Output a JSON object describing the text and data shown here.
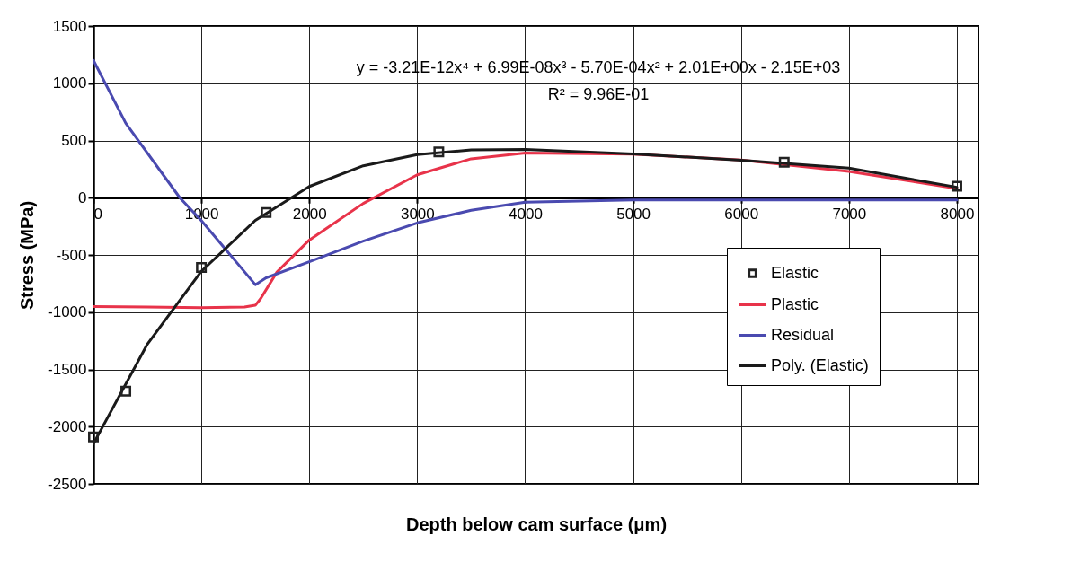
{
  "chart_data": {
    "type": "line",
    "xlabel": "Depth below cam surface (μm)",
    "ylabel": "Stress (MPa)",
    "xlim": [
      0,
      8200
    ],
    "xticks": [
      0,
      1000,
      2000,
      3000,
      4000,
      5000,
      6000,
      7000,
      8000
    ],
    "ylim": [
      -2500,
      1500
    ],
    "yticks": [
      -2500,
      -2000,
      -1500,
      -1000,
      -500,
      0,
      500,
      1000,
      1500
    ],
    "grid": true,
    "legend": "bottom right",
    "annotations": [
      "y = -3.21E-12x⁴ + 6.99E-08x³ - 5.70E-04x² + 2.01E+00x - 2.15E+03",
      "R² = 9.96E-01"
    ],
    "series": [
      {
        "name": "Elastic",
        "type": "scatter",
        "marker": "square",
        "color": "#222222",
        "x": [
          0,
          300,
          1000,
          1600,
          3200,
          6400,
          8000
        ],
        "values": [
          -2090,
          -1690,
          -610,
          -130,
          400,
          310,
          100
        ]
      },
      {
        "name": "Plastic",
        "color": "#e8334a",
        "x": [
          0,
          500,
          1000,
          1400,
          1500,
          1550,
          1700,
          2000,
          2500,
          3000,
          3500,
          4000,
          5000,
          6000,
          7000,
          8000
        ],
        "values": [
          -950,
          -955,
          -960,
          -955,
          -940,
          -880,
          -650,
          -370,
          -50,
          200,
          340,
          390,
          380,
          330,
          230,
          80
        ]
      },
      {
        "name": "Residual",
        "color": "#4a4ab0",
        "x": [
          0,
          300,
          800,
          1000,
          1500,
          1600,
          2000,
          2500,
          3000,
          3500,
          4000,
          5000,
          6000,
          7000,
          8000
        ],
        "values": [
          1200,
          650,
          0,
          -200,
          -760,
          -700,
          -560,
          -380,
          -220,
          -110,
          -40,
          -20,
          -20,
          -20,
          -20
        ]
      },
      {
        "name": "Poly. (Elastic)",
        "color": "#1a1a1a",
        "x": [
          0,
          500,
          1000,
          1500,
          2000,
          2500,
          3000,
          3500,
          4000,
          5000,
          6000,
          7000,
          8000
        ],
        "values": [
          -2150,
          -1279,
          -643,
          -198,
          98,
          279,
          377,
          418,
          422,
          382,
          328,
          259,
          91
        ]
      }
    ]
  }
}
